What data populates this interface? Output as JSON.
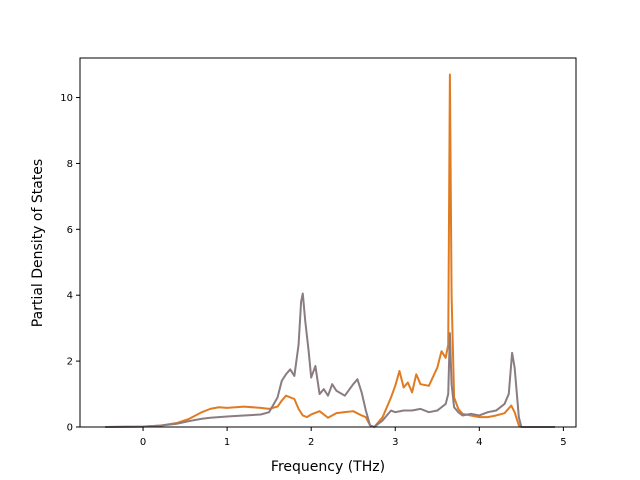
{
  "chart_data": {
    "type": "line",
    "title": "",
    "xlabel": "Frequency (THz)",
    "ylabel": "Partial Density of States",
    "xlim": [
      -0.75,
      5.15
    ],
    "ylim": [
      0,
      11.2
    ],
    "xticks": [
      0,
      1,
      2,
      3,
      4,
      5
    ],
    "yticks": [
      0,
      2,
      4,
      6,
      8,
      10
    ],
    "xtick_labels": [
      "0",
      "1",
      "2",
      "3",
      "4",
      "5"
    ],
    "ytick_labels": [
      "0",
      "2",
      "4",
      "6",
      "8",
      "10"
    ],
    "grid": false,
    "series": [
      {
        "color": "#e07b22",
        "x": [
          -0.45,
          0.0,
          0.2,
          0.4,
          0.55,
          0.7,
          0.8,
          0.9,
          1.0,
          1.2,
          1.4,
          1.5,
          1.6,
          1.65,
          1.7,
          1.8,
          1.85,
          1.9,
          1.95,
          2.0,
          2.1,
          2.2,
          2.3,
          2.4,
          2.5,
          2.6,
          2.65,
          2.7,
          2.75,
          2.85,
          2.95,
          3.0,
          3.05,
          3.1,
          3.15,
          3.2,
          3.25,
          3.3,
          3.4,
          3.5,
          3.55,
          3.6,
          3.63,
          3.65,
          3.67,
          3.7,
          3.75,
          3.8,
          3.9,
          4.0,
          4.1,
          4.2,
          4.3,
          4.38,
          4.42,
          4.47,
          4.5,
          4.9
        ],
        "y": [
          0.0,
          0.01,
          0.04,
          0.12,
          0.25,
          0.45,
          0.55,
          0.6,
          0.58,
          0.62,
          0.58,
          0.55,
          0.62,
          0.8,
          0.95,
          0.85,
          0.55,
          0.35,
          0.3,
          0.38,
          0.48,
          0.28,
          0.42,
          0.45,
          0.48,
          0.35,
          0.3,
          0.05,
          0.0,
          0.3,
          0.9,
          1.25,
          1.7,
          1.2,
          1.35,
          1.05,
          1.6,
          1.3,
          1.25,
          1.8,
          2.3,
          2.1,
          2.5,
          10.7,
          4.0,
          0.9,
          0.55,
          0.4,
          0.35,
          0.3,
          0.3,
          0.35,
          0.42,
          0.65,
          0.45,
          0.05,
          0.0,
          0.0
        ]
      },
      {
        "color": "#8a7c80",
        "x": [
          -0.45,
          0.0,
          0.2,
          0.4,
          0.55,
          0.7,
          0.8,
          0.9,
          1.0,
          1.2,
          1.4,
          1.5,
          1.6,
          1.65,
          1.7,
          1.75,
          1.8,
          1.85,
          1.88,
          1.9,
          1.93,
          1.97,
          2.0,
          2.05,
          2.1,
          2.15,
          2.2,
          2.25,
          2.3,
          2.4,
          2.5,
          2.55,
          2.6,
          2.65,
          2.7,
          2.75,
          2.85,
          2.95,
          3.0,
          3.1,
          3.2,
          3.3,
          3.4,
          3.5,
          3.55,
          3.6,
          3.63,
          3.65,
          3.67,
          3.7,
          3.75,
          3.8,
          3.9,
          4.0,
          4.1,
          4.2,
          4.3,
          4.35,
          4.39,
          4.42,
          4.45,
          4.47,
          4.5,
          4.9
        ],
        "y": [
          0.0,
          0.01,
          0.04,
          0.1,
          0.18,
          0.25,
          0.28,
          0.3,
          0.32,
          0.35,
          0.38,
          0.45,
          0.9,
          1.4,
          1.6,
          1.75,
          1.55,
          2.5,
          3.8,
          4.05,
          3.2,
          2.3,
          1.5,
          1.85,
          1.0,
          1.15,
          0.95,
          1.3,
          1.1,
          0.95,
          1.3,
          1.45,
          1.05,
          0.5,
          0.05,
          0.0,
          0.2,
          0.5,
          0.45,
          0.5,
          0.5,
          0.55,
          0.45,
          0.5,
          0.6,
          0.7,
          1.0,
          2.85,
          1.3,
          0.6,
          0.45,
          0.35,
          0.4,
          0.35,
          0.45,
          0.5,
          0.7,
          1.0,
          2.25,
          1.8,
          0.9,
          0.3,
          0.0,
          0.0
        ]
      }
    ]
  }
}
